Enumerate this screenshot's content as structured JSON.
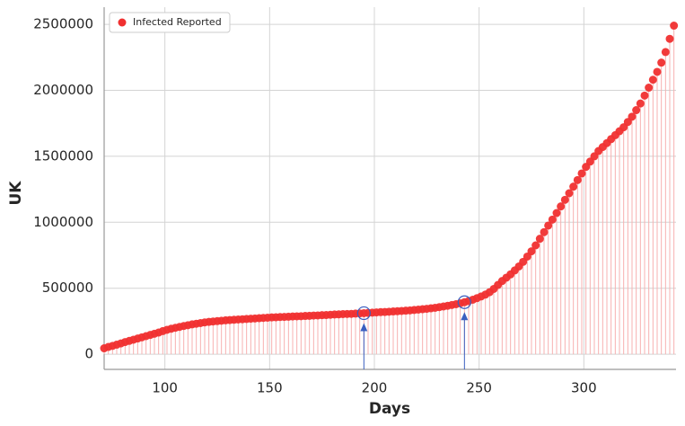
{
  "chart_data": {
    "type": "stem",
    "x_label": "Days",
    "y_label": "UK",
    "xlim": [
      71,
      344
    ],
    "ylim": [
      -115000,
      2630000
    ],
    "xticks": [
      100,
      150,
      200,
      250,
      300
    ],
    "yticks": [
      0,
      500000,
      1000000,
      1500000,
      2000000,
      2500000
    ],
    "grid": true,
    "legend": "upper left",
    "series": [
      {
        "name": "Infected Reported",
        "color": "#f03030",
        "stem_color": "#f7b0b0",
        "x": [
          71,
          73,
          75,
          77,
          79,
          81,
          83,
          85,
          87,
          89,
          91,
          93,
          95,
          97,
          99,
          101,
          103,
          105,
          107,
          109,
          111,
          113,
          115,
          117,
          119,
          121,
          123,
          125,
          127,
          129,
          131,
          133,
          135,
          137,
          139,
          141,
          143,
          145,
          147,
          149,
          151,
          153,
          155,
          157,
          159,
          161,
          163,
          165,
          167,
          169,
          171,
          173,
          175,
          177,
          179,
          181,
          183,
          185,
          187,
          189,
          191,
          193,
          195,
          197,
          199,
          201,
          203,
          205,
          207,
          209,
          211,
          213,
          215,
          217,
          219,
          221,
          223,
          225,
          227,
          229,
          231,
          233,
          235,
          237,
          239,
          241,
          243,
          245,
          247,
          249,
          251,
          253,
          255,
          257,
          259,
          261,
          263,
          265,
          267,
          269,
          271,
          273,
          275,
          277,
          279,
          281,
          283,
          285,
          287,
          289,
          291,
          293,
          295,
          297,
          299,
          301,
          303,
          305,
          307,
          309,
          311,
          313,
          315,
          317,
          319,
          321,
          323,
          325,
          327,
          329,
          331,
          333,
          335,
          337,
          339,
          341,
          343
        ],
        "values": [
          45000,
          55000,
          63000,
          72000,
          82000,
          92000,
          101000,
          110000,
          119000,
          128000,
          137000,
          146000,
          155000,
          164000,
          175000,
          185000,
          193000,
          200000,
          207000,
          214000,
          220000,
          226000,
          231000,
          236000,
          241000,
          245000,
          248000,
          251000,
          254000,
          257000,
          259000,
          261000,
          263000,
          265000,
          267000,
          269000,
          271000,
          273000,
          275000,
          277000,
          279000,
          280000,
          282000,
          283000,
          284000,
          286000,
          287000,
          288000,
          290000,
          291000,
          293000,
          294000,
          296000,
          297000,
          299000,
          301000,
          302000,
          304000,
          305000,
          306000,
          308000,
          309000,
          311000,
          313000,
          315000,
          317000,
          319000,
          320000,
          322000,
          324000,
          326000,
          328000,
          330000,
          332000,
          335000,
          338000,
          341000,
          344000,
          348000,
          352000,
          357000,
          362000,
          367000,
          373000,
          379000,
          386000,
          394000,
          403000,
          413000,
          425000,
          438000,
          452000,
          470000,
          495000,
          525000,
          555000,
          580000,
          605000,
          635000,
          665000,
          700000,
          740000,
          780000,
          825000,
          875000,
          925000,
          975000,
          1020000,
          1070000,
          1120000,
          1170000,
          1220000,
          1270000,
          1320000,
          1370000,
          1420000,
          1460000,
          1500000,
          1540000,
          1570000,
          1600000,
          1630000,
          1660000,
          1690000,
          1720000,
          1760000,
          1800000,
          1850000,
          1900000,
          1960000,
          2020000,
          2080000,
          2140000,
          2210000,
          2290000,
          2390000,
          2490000
        ]
      }
    ],
    "annotations": [
      {
        "x": 195,
        "y": 311000,
        "color": "#3a5fc0"
      },
      {
        "x": 243,
        "y": 394000,
        "color": "#3a5fc0"
      }
    ]
  }
}
